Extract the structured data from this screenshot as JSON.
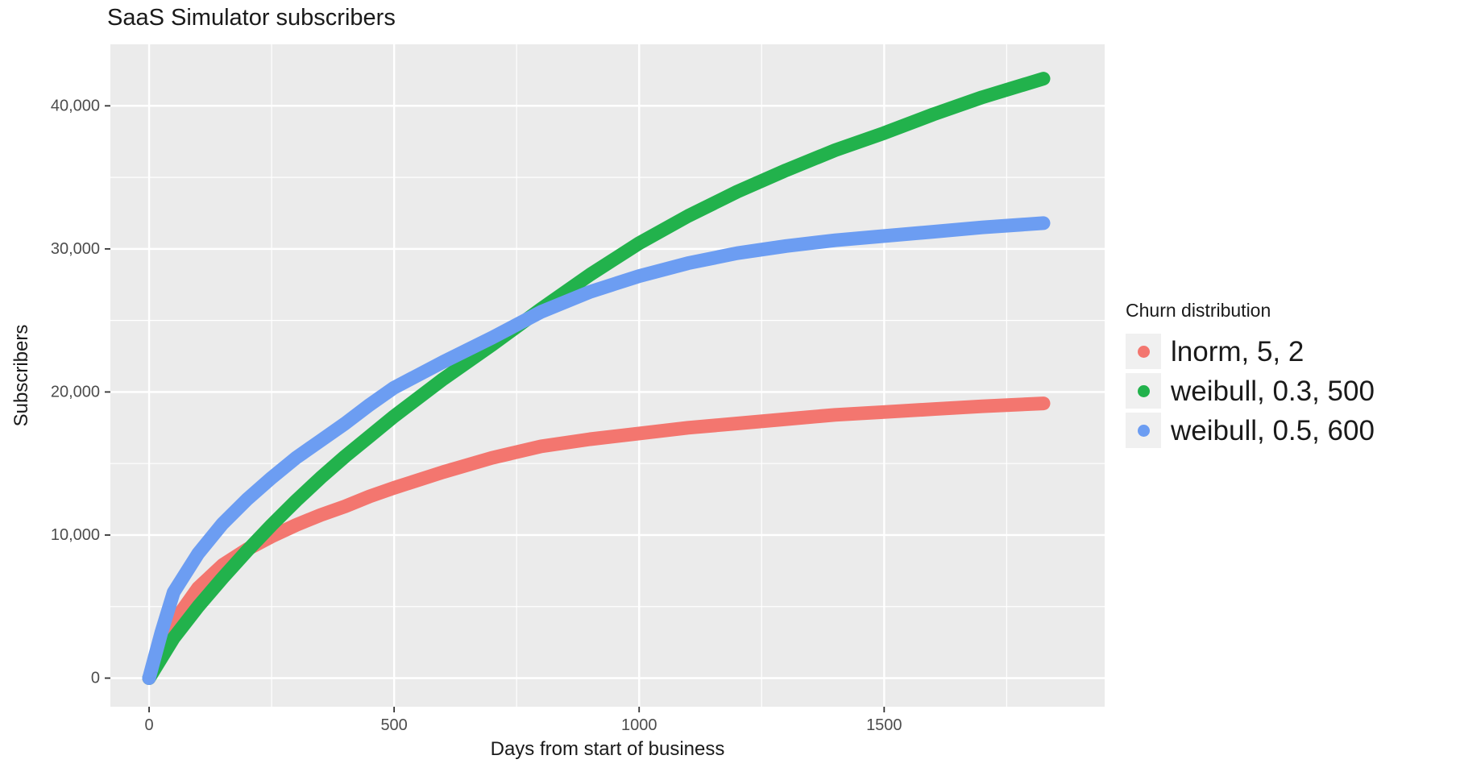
{
  "title": "SaaS Simulator subscribers",
  "axes": {
    "x_label": "Days from start of business",
    "y_label": "Subscribers"
  },
  "legend": {
    "title": "Churn distribution",
    "entries": [
      {
        "label": "lnorm, 5, 2",
        "color": "#F3766F"
      },
      {
        "label": "weibull, 0.3, 500",
        "color": "#22B24C"
      },
      {
        "label": "weibull, 0.5, 600",
        "color": "#6C9DF2"
      }
    ]
  },
  "chart_data": {
    "type": "line",
    "title": "SaaS Simulator subscribers",
    "xlabel": "Days from start of business",
    "ylabel": "Subscribers",
    "legend_position": "right",
    "grid": true,
    "panel_bg": "#EBEBEB",
    "grid_color": "#FFFFFF",
    "tick_label_color": "#4D4D4D",
    "tick_mark_color": "#333333",
    "xlim": [
      -79,
      1950
    ],
    "ylim": [
      -2000,
      44300
    ],
    "x_ticks": [
      {
        "value": 0,
        "label": "0"
      },
      {
        "value": 500,
        "label": "500"
      },
      {
        "value": 1000,
        "label": "1000"
      },
      {
        "value": 1500,
        "label": "1500"
      }
    ],
    "y_ticks": [
      {
        "value": 0,
        "label": "0"
      },
      {
        "value": 10000,
        "label": "10,000"
      },
      {
        "value": 20000,
        "label": "20,000"
      },
      {
        "value": 30000,
        "label": "30,000"
      },
      {
        "value": 40000,
        "label": "40,000"
      }
    ],
    "x_minor": [
      250,
      750,
      1250,
      1750
    ],
    "y_minor": [
      5000,
      15000,
      25000,
      35000
    ],
    "x": [
      0,
      25,
      50,
      100,
      150,
      200,
      250,
      300,
      350,
      400,
      450,
      500,
      600,
      700,
      800,
      900,
      1000,
      1100,
      1200,
      1300,
      1400,
      1500,
      1600,
      1700,
      1825
    ],
    "series": [
      {
        "name": "lnorm, 5, 2",
        "color": "#F3766F",
        "values": [
          0,
          2200,
          3900,
          6300,
          7900,
          9000,
          9900,
          10700,
          11400,
          12000,
          12700,
          13300,
          14400,
          15400,
          16200,
          16700,
          17100,
          17500,
          17800,
          18100,
          18400,
          18600,
          18800,
          19000,
          19200
        ]
      },
      {
        "name": "weibull, 0.3, 500",
        "color": "#22B24C",
        "values": [
          0,
          1400,
          2800,
          5000,
          7000,
          8900,
          10700,
          12400,
          14000,
          15500,
          16900,
          18300,
          20900,
          23300,
          25800,
          28200,
          30400,
          32300,
          34000,
          35500,
          36900,
          38100,
          39400,
          40600,
          41900
        ]
      },
      {
        "name": "weibull, 0.5, 600",
        "color": "#6C9DF2",
        "values": [
          0,
          3200,
          6000,
          8700,
          10800,
          12500,
          14000,
          15400,
          16600,
          17800,
          19100,
          20300,
          22100,
          23800,
          25600,
          27000,
          28100,
          29000,
          29700,
          30200,
          30600,
          30900,
          31200,
          31500,
          31800
        ]
      }
    ]
  }
}
